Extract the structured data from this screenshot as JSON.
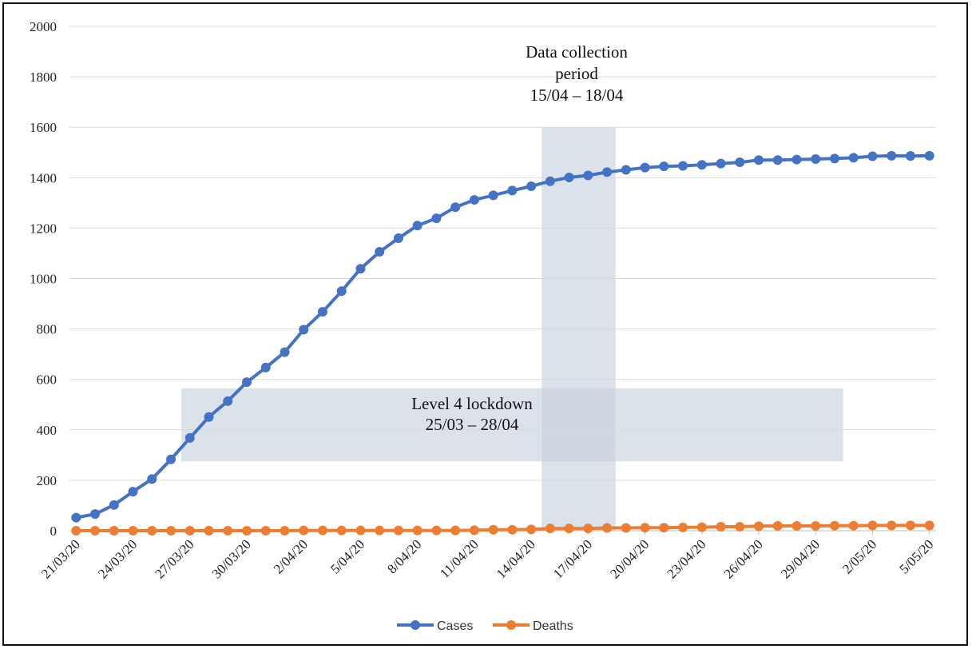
{
  "chart_data": {
    "type": "line",
    "title": "",
    "xlabel": "",
    "ylabel": "",
    "ylim": [
      0,
      2000
    ],
    "y_ticks": [
      "0",
      "200",
      "400",
      "600",
      "800",
      "1000",
      "1200",
      "1400",
      "1600",
      "1800",
      "2000"
    ],
    "x_tick_labels": [
      "21/03/20",
      "24/03/20",
      "27/03/20",
      "30/03/20",
      "2/04/20",
      "5/04/20",
      "8/04/20",
      "11/04/20",
      "14/04/20",
      "17/04/20",
      "20/04/20",
      "23/04/20",
      "26/04/20",
      "29/04/20",
      "2/05/20",
      "5/05/20"
    ],
    "x_start": "21/03/20",
    "x_tick_step_days": 3,
    "grid": "horizontal",
    "legend_position": "bottom",
    "colors": {
      "cases": "#4472c4",
      "deaths": "#ed7d31",
      "band": "#c7d0db",
      "grid": "#d9d9d9"
    },
    "series": [
      {
        "name": "Cases",
        "color": "#4472c4",
        "values": [
          52,
          66,
          102,
          155,
          205,
          283,
          368,
          451,
          514,
          589,
          647,
          708,
          797,
          868,
          950,
          1039,
          1106,
          1160,
          1210,
          1239,
          1283,
          1312,
          1330,
          1349,
          1366,
          1386,
          1401,
          1409,
          1422,
          1431,
          1440,
          1445,
          1447,
          1451,
          1456,
          1461,
          1470,
          1470,
          1472,
          1474,
          1476,
          1479,
          1485,
          1487,
          1486,
          1487
        ]
      },
      {
        "name": "Deaths",
        "color": "#ed7d31",
        "values": [
          0,
          0,
          0,
          0,
          0,
          0,
          0,
          0,
          0,
          0,
          0,
          0,
          1,
          1,
          1,
          1,
          1,
          1,
          1,
          1,
          1,
          2,
          4,
          4,
          5,
          9,
          9,
          9,
          11,
          11,
          12,
          12,
          13,
          14,
          16,
          16,
          18,
          19,
          19,
          19,
          20,
          20,
          21,
          21,
          21,
          21
        ]
      }
    ],
    "annotations": [
      {
        "lines": [
          "Data collection",
          "period",
          "15/04 – 18/04"
        ],
        "band_x_index": [
          25,
          28
        ],
        "band_y": [
          0,
          1600
        ]
      },
      {
        "lines": [
          "Level 4 lockdown",
          "25/03 – 28/04"
        ],
        "band_x_index": [
          6,
          40
        ],
        "band_y": [
          275,
          565
        ]
      }
    ]
  }
}
